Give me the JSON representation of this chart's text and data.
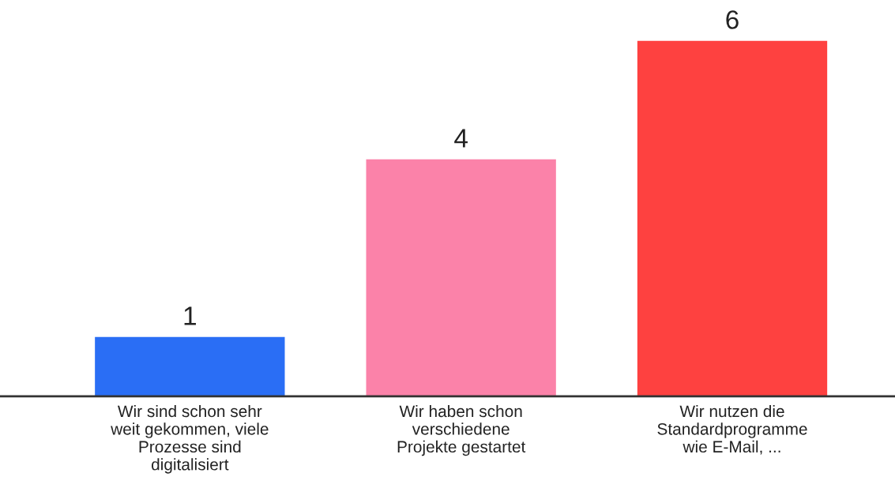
{
  "chart_data": {
    "type": "bar",
    "categories": [
      "Wir sind schon sehr\nweit gekommen, viele\nProzesse sind\ndigitalisiert",
      "Wir haben schon\nverschiedene\nProjekte gestartet",
      "Wir nutzen die\nStandardprogramme\nwie E-Mail, ..."
    ],
    "values": [
      1,
      4,
      6
    ],
    "colors": [
      "#2a6ef5",
      "#fb82a9",
      "#fe4140"
    ],
    "data_labels": true,
    "grid": false,
    "legend": false
  }
}
